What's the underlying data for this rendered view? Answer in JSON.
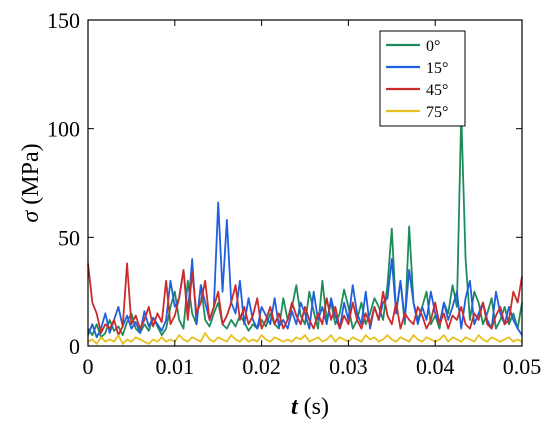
{
  "chart_data": {
    "type": "line",
    "title": "",
    "xlabel": {
      "symbol": "t",
      "unit": " (s)"
    },
    "ylabel": {
      "symbol": "σ",
      "unit": " (MPa)"
    },
    "xlim": [
      0,
      0.05
    ],
    "ylim": [
      0,
      150
    ],
    "xticks": [
      "0",
      "0.01",
      "0.02",
      "0.03",
      "0.04",
      "0.05"
    ],
    "yticks": [
      "0",
      "50",
      "100",
      "150"
    ],
    "xtick_values": [
      0,
      0.01,
      0.02,
      0.03,
      0.04,
      0.05
    ],
    "ytick_values": [
      0,
      50,
      100,
      150
    ],
    "grid": false,
    "legend_position": "top-right",
    "x": [
      0,
      0.0005,
      0.001,
      0.0015,
      0.002,
      0.0025,
      0.003,
      0.0035,
      0.004,
      0.0045,
      0.005,
      0.0055,
      0.006,
      0.0065,
      0.007,
      0.0075,
      0.008,
      0.0085,
      0.009,
      0.0095,
      0.01,
      0.0105,
      0.011,
      0.0115,
      0.012,
      0.0125,
      0.013,
      0.0135,
      0.014,
      0.0145,
      0.015,
      0.0155,
      0.016,
      0.0165,
      0.017,
      0.0175,
      0.018,
      0.0185,
      0.019,
      0.0195,
      0.02,
      0.0205,
      0.021,
      0.0215,
      0.022,
      0.0225,
      0.023,
      0.0235,
      0.024,
      0.0245,
      0.025,
      0.0255,
      0.026,
      0.0265,
      0.027,
      0.0275,
      0.028,
      0.0285,
      0.029,
      0.0295,
      0.03,
      0.0305,
      0.031,
      0.0315,
      0.032,
      0.0325,
      0.033,
      0.0335,
      0.034,
      0.0345,
      0.035,
      0.0355,
      0.036,
      0.0365,
      0.037,
      0.0375,
      0.038,
      0.0385,
      0.039,
      0.0395,
      0.04,
      0.0405,
      0.041,
      0.0415,
      0.042,
      0.0425,
      0.043,
      0.0435,
      0.044,
      0.0445,
      0.045,
      0.0455,
      0.046,
      0.0465,
      0.047,
      0.0475,
      0.048,
      0.0485,
      0.049,
      0.0495,
      0.05
    ],
    "series": [
      {
        "name": "0°",
        "color": "#1e8c5a",
        "values": [
          8,
          5,
          10,
          4,
          6,
          12,
          7,
          9,
          5,
          11,
          15,
          8,
          6,
          10,
          7,
          13,
          9,
          5,
          8,
          18,
          25,
          12,
          8,
          30,
          15,
          10,
          28,
          12,
          9,
          15,
          20,
          10,
          8,
          12,
          9,
          14,
          11,
          7,
          10,
          8,
          12,
          9,
          15,
          10,
          8,
          22,
          12,
          18,
          28,
          14,
          10,
          25,
          16,
          8,
          30,
          12,
          20,
          10,
          15,
          26,
          18,
          8,
          12,
          20,
          10,
          15,
          22,
          18,
          12,
          28,
          54,
          15,
          30,
          10,
          55,
          20,
          12,
          18,
          25,
          10,
          14,
          8,
          20,
          15,
          28,
          18,
          107,
          40,
          12,
          25,
          20,
          10,
          15,
          22,
          8,
          12,
          18,
          10,
          15,
          8,
          20
        ]
      },
      {
        "name": "15°",
        "color": "#1f5fe0",
        "values": [
          5,
          10,
          4,
          8,
          15,
          6,
          12,
          18,
          9,
          14,
          8,
          11,
          6,
          16,
          9,
          13,
          10,
          7,
          12,
          30,
          18,
          22,
          35,
          15,
          40,
          10,
          28,
          20,
          12,
          18,
          66,
          25,
          58,
          20,
          15,
          30,
          10,
          22,
          12,
          8,
          18,
          14,
          10,
          22,
          9,
          12,
          8,
          16,
          10,
          20,
          15,
          8,
          25,
          12,
          18,
          10,
          22,
          14,
          8,
          20,
          12,
          28,
          15,
          10,
          25,
          8,
          18,
          12,
          20,
          22,
          40,
          15,
          30,
          12,
          35,
          20,
          10,
          18,
          12,
          25,
          15,
          10,
          20,
          12,
          18,
          25,
          8,
          22,
          30,
          10,
          15,
          20,
          12,
          8,
          25,
          15,
          10,
          18,
          12,
          8,
          5
        ]
      },
      {
        "name": "45°",
        "color": "#cc2b2b",
        "values": [
          38,
          20,
          15,
          6,
          10,
          8,
          12,
          5,
          9,
          38,
          10,
          14,
          8,
          12,
          18,
          9,
          15,
          11,
          30,
          10,
          14,
          22,
          35,
          12,
          34,
          15,
          20,
          30,
          12,
          18,
          25,
          10,
          14,
          20,
          28,
          12,
          18,
          10,
          14,
          22,
          8,
          12,
          18,
          10,
          15,
          8,
          12,
          20,
          14,
          10,
          18,
          12,
          8,
          15,
          10,
          22,
          12,
          18,
          8,
          14,
          10,
          20,
          12,
          8,
          15,
          10,
          18,
          12,
          25,
          14,
          10,
          20,
          8,
          15,
          12,
          10,
          18,
          14,
          8,
          12,
          20,
          10,
          15,
          8,
          14,
          12,
          18,
          10,
          8,
          15,
          12,
          20,
          10,
          8,
          14,
          18,
          10,
          12,
          25,
          20,
          32
        ]
      },
      {
        "name": "75°",
        "color": "#e8c020",
        "values": [
          2,
          3,
          1,
          4,
          2,
          3,
          2,
          5,
          1,
          3,
          2,
          4,
          3,
          2,
          1,
          3,
          2,
          4,
          2,
          3,
          2,
          5,
          3,
          2,
          4,
          3,
          2,
          6,
          3,
          2,
          4,
          3,
          2,
          5,
          3,
          2,
          4,
          2,
          3,
          2,
          5,
          3,
          2,
          4,
          3,
          2,
          3,
          2,
          4,
          3,
          5,
          2,
          3,
          4,
          2,
          3,
          5,
          2,
          4,
          3,
          2,
          4,
          3,
          2,
          5,
          3,
          4,
          2,
          3,
          5,
          3,
          2,
          4,
          3,
          2,
          5,
          3,
          2,
          4,
          3,
          2,
          3,
          5,
          2,
          4,
          3,
          2,
          4,
          3,
          2,
          5,
          3,
          2,
          4,
          3,
          2,
          3,
          4,
          2,
          3,
          2
        ]
      }
    ]
  }
}
